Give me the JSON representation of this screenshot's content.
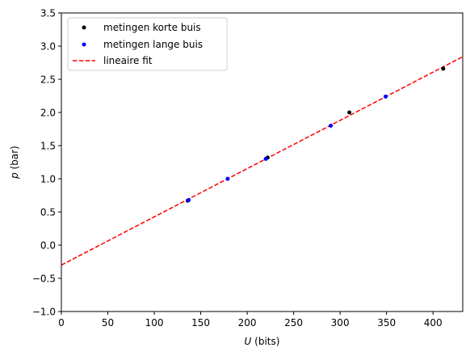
{
  "chart_data": {
    "type": "scatter",
    "xlabel": {
      "var": "U",
      "unit": " (bits)"
    },
    "ylabel": {
      "var": "p",
      "unit": " (bar)"
    },
    "xlim": [
      0,
      432
    ],
    "ylim": [
      -1.0,
      3.5
    ],
    "xticks": [
      0,
      50,
      100,
      150,
      200,
      250,
      300,
      350,
      400
    ],
    "yticks": [
      -1.0,
      -0.5,
      0.0,
      0.5,
      1.0,
      1.5,
      2.0,
      2.5,
      3.0,
      3.5
    ],
    "grid": false,
    "legend_position": "top-left",
    "series": [
      {
        "name": "metingen korte buis",
        "kind": "points",
        "color": "#000000",
        "points": [
          [
            136,
            0.67
          ],
          [
            222,
            1.32
          ],
          [
            310,
            2.0
          ],
          [
            411,
            2.66
          ]
        ]
      },
      {
        "name": "metingen lange buis",
        "kind": "points",
        "color": "#0000ff",
        "points": [
          [
            137,
            0.68
          ],
          [
            179,
            1.0
          ],
          [
            220,
            1.3
          ],
          [
            290,
            1.8
          ],
          [
            349,
            2.24
          ]
        ]
      },
      {
        "name": "lineaire fit",
        "kind": "dashed-line",
        "color": "#ff0000",
        "points": [
          [
            0,
            -0.3
          ],
          [
            432,
            2.84
          ]
        ]
      }
    ]
  }
}
